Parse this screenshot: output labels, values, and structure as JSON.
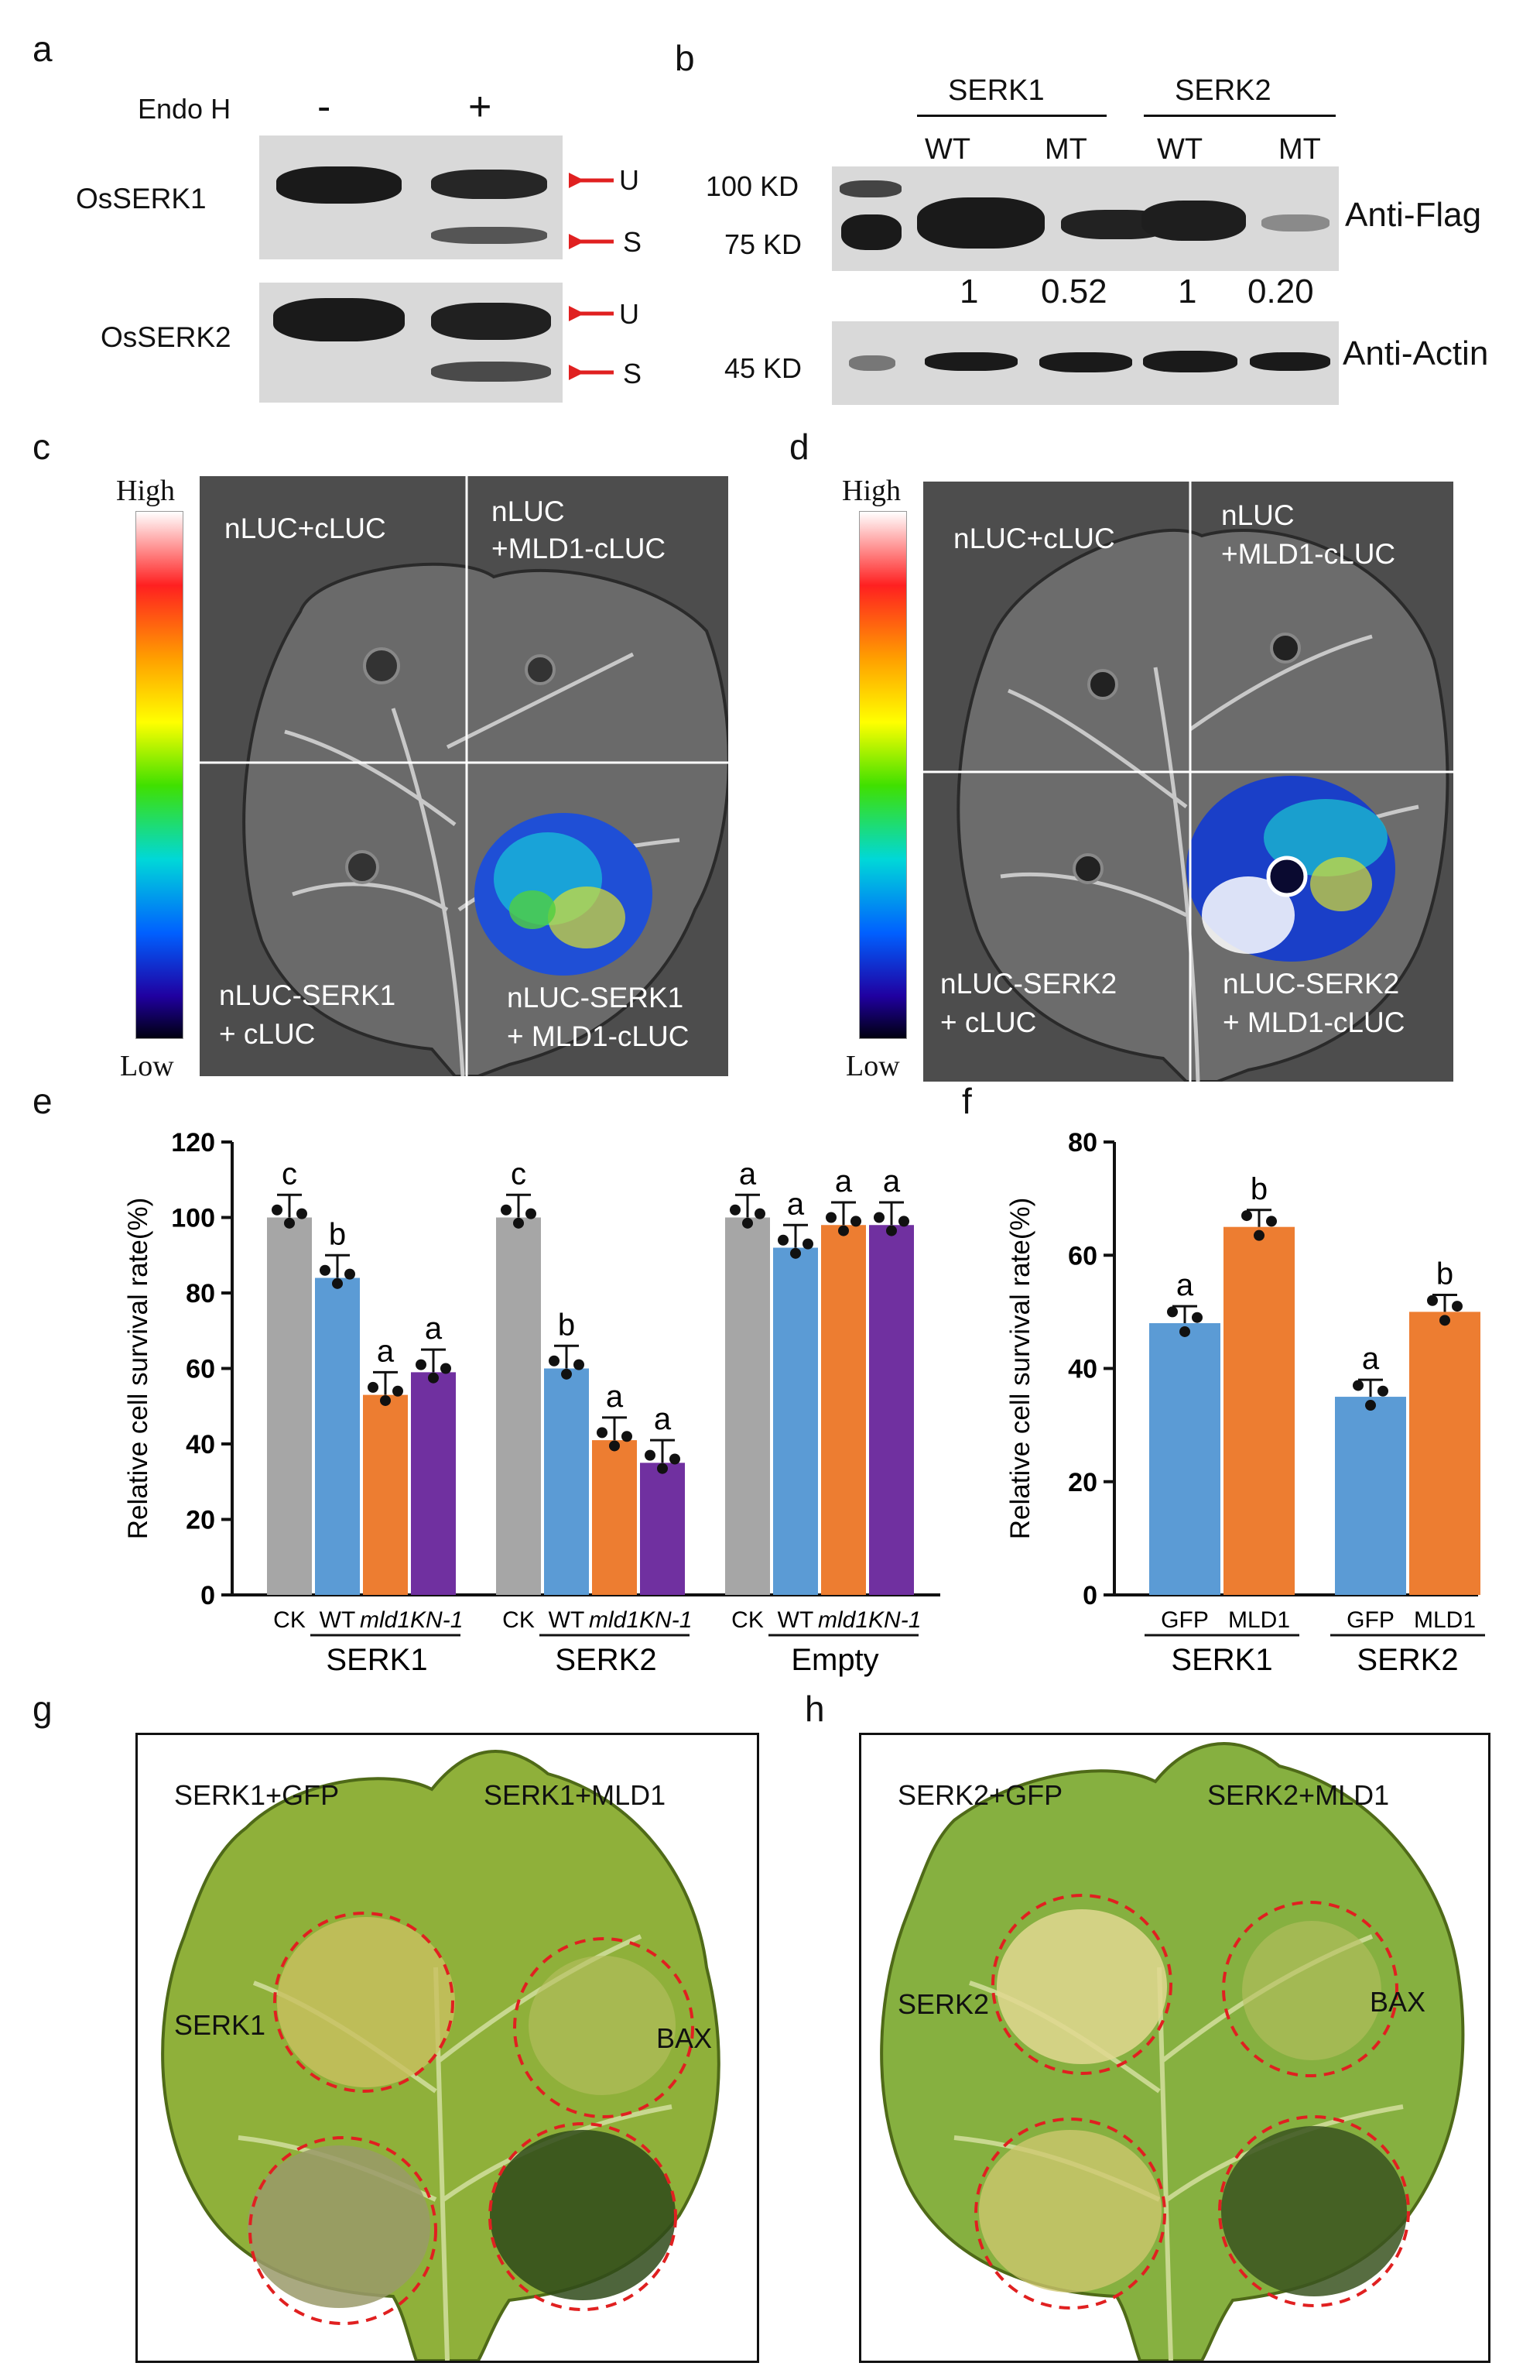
{
  "panels": {
    "a": {
      "label": "a",
      "treatment": "Endo H",
      "minus": "-",
      "plus": "+",
      "rows": [
        "OsSERK1",
        "OsSERK2"
      ],
      "arrow_u": "U",
      "arrow_s": "S"
    },
    "b": {
      "label": "b",
      "groups": [
        "SERK1",
        "SERK2"
      ],
      "lanes": [
        "WT",
        "MT",
        "WT",
        "MT"
      ],
      "markers": [
        "100 KD",
        "75 KD",
        "45 KD"
      ],
      "ratios": [
        "1",
        "0.52",
        "1",
        "0.20"
      ],
      "antibody_top": "Anti-Flag",
      "antibody_bottom": "Anti-Actin"
    },
    "c": {
      "label": "c",
      "scale_high": "High",
      "scale_low": "Low",
      "q1": "nLUC+cLUC",
      "q2_line1": "nLUC",
      "q2_line2": "+MLD1-cLUC",
      "q3_line1": "nLUC-SERK1",
      "q3_line2": "+ cLUC",
      "q4_line1": "nLUC-SERK1",
      "q4_line2": "+ MLD1-cLUC"
    },
    "d": {
      "label": "d",
      "scale_high": "High",
      "scale_low": "Low",
      "q1": "nLUC+cLUC",
      "q2_line1": "nLUC",
      "q2_line2": "+MLD1-cLUC",
      "q3_line1": "nLUC-SERK2",
      "q3_line2": "+ cLUC",
      "q4_line1": "nLUC-SERK2",
      "q4_line2": "+ MLD1-cLUC"
    },
    "g": {
      "label": "g",
      "tl": "SERK1+GFP",
      "tr": "SERK1+MLD1",
      "bl": "SERK1",
      "br": "BAX"
    },
    "h": {
      "label": "h",
      "tl": "SERK2+GFP",
      "tr": "SERK2+MLD1",
      "bl": "SERK2",
      "br": "BAX"
    }
  },
  "chart_data": [
    {
      "panel": "e",
      "label": "e",
      "type": "bar",
      "ylabel": "Relative cell survival rate(%)",
      "ylim": [
        0,
        120
      ],
      "yticks": [
        "0",
        "20",
        "40",
        "60",
        "80",
        "100",
        "120"
      ],
      "groups": [
        {
          "name": "SERK1",
          "categories": [
            "CK",
            "WT",
            "mld1KN-1",
            ""
          ],
          "values": [
            100,
            84,
            53,
            59
          ],
          "letters": [
            "c",
            "b",
            "a",
            "a"
          ]
        },
        {
          "name": "SERK2",
          "categories": [
            "CK",
            "WT",
            "mld1KN-1",
            ""
          ],
          "values": [
            100,
            60,
            41,
            35
          ],
          "letters": [
            "c",
            "b",
            "a",
            "a"
          ]
        },
        {
          "name": "Empty",
          "categories": [
            "CK",
            "WT",
            "mld1KN-1",
            ""
          ],
          "values": [
            100,
            92,
            98,
            98
          ],
          "letters": [
            "a",
            "a",
            "a",
            "a"
          ]
        }
      ],
      "series_colors": [
        "#a6a6a6",
        "#5b9bd5",
        "#ed7d31",
        "#7030a0"
      ]
    },
    {
      "panel": "f",
      "label": "f",
      "type": "bar",
      "ylabel": "Relative cell survival rate(%)",
      "ylim": [
        0,
        80
      ],
      "yticks": [
        "0",
        "20",
        "40",
        "60",
        "80"
      ],
      "groups": [
        {
          "name": "SERK1",
          "categories": [
            "GFP",
            "MLD1"
          ],
          "values": [
            48,
            65
          ],
          "letters": [
            "a",
            "b"
          ]
        },
        {
          "name": "SERK2",
          "categories": [
            "GFP",
            "MLD1"
          ],
          "values": [
            35,
            50
          ],
          "letters": [
            "a",
            "b"
          ]
        }
      ],
      "series_colors": [
        "#5b9bd5",
        "#ed7d31"
      ]
    }
  ]
}
